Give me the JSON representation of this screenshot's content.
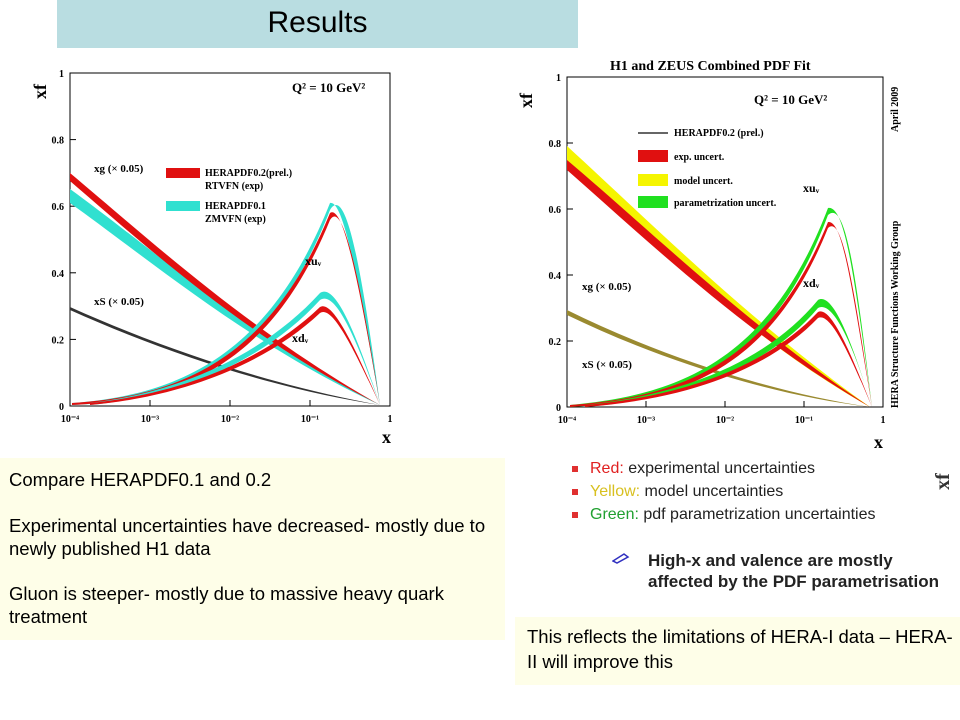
{
  "slide": {
    "title": "Results"
  },
  "left_plot": {
    "y_axis_label": "xf",
    "x_axis_label": "x",
    "q2_label": "Q² = 10 GeV²",
    "yticks": [
      "0",
      "0.2",
      "0.4",
      "0.6",
      "0.8",
      "1"
    ],
    "xticks": [
      "10⁻⁴",
      "10⁻³",
      "10⁻²",
      "10⁻¹",
      "1"
    ],
    "curve_labels": {
      "xg": "xg (× 0.05)",
      "xs": "xS (× 0.05)",
      "xuv": "xuᵥ",
      "xdv": "xdᵥ"
    },
    "legend": [
      {
        "line1": "HERAPDF0.2(prel.)",
        "line2": "RTVFN (exp)",
        "color": "#e01010"
      },
      {
        "line1": "HERAPDF0.1",
        "line2": "ZMVFN (exp)",
        "color": "#30e0d0"
      }
    ]
  },
  "right_plot": {
    "title": "H1 and ZEUS Combined PDF Fit",
    "y_axis_label": "xf",
    "x_axis_label": "x",
    "q2_label": "Q² = 10 GeV²",
    "side_date": "April 2009",
    "side_group": "HERA Structure Functions Working Group",
    "yticks": [
      "0",
      "0.2",
      "0.4",
      "0.6",
      "0.8",
      "1"
    ],
    "xticks": [
      "10⁻⁴",
      "10⁻³",
      "10⁻²",
      "10⁻¹",
      "1"
    ],
    "curve_labels": {
      "xg": "xg (× 0.05)",
      "xs": "xS (× 0.05)",
      "xuv": "xuᵥ",
      "xdv": "xdᵥ"
    },
    "legend": [
      {
        "label": "HERAPDF0.2 (prel.)",
        "color": "#333333"
      },
      {
        "label": "exp. uncert.",
        "color": "#e01010"
      },
      {
        "label": "model uncert.",
        "color": "#f5f500"
      },
      {
        "label": "parametrization uncert.",
        "color": "#20e020"
      }
    ]
  },
  "bullets": [
    {
      "key": "Red:",
      "rest": " experimental uncertainties",
      "color": "#e02020"
    },
    {
      "key": "Yellow:",
      "rest": " model uncertainties",
      "color": "#d8c020"
    },
    {
      "key": "Green:",
      "rest": " pdf parametrization uncertainties",
      "color": "#20a030"
    }
  ],
  "note": "High-x and valence are mostly affected by the PDF parametrisation",
  "corner_label": "xf",
  "left_box": {
    "p1": "Compare HERAPDF0.1 and 0.2",
    "p2": "Experimental uncertainties have decreased- mostly due to newly published H1 data",
    "p3": "Gluon is steeper- mostly due to massive heavy quark treatment"
  },
  "right_box": {
    "p1": "This reflects the limitations of HERA-I data – HERA-II will improve this"
  }
}
